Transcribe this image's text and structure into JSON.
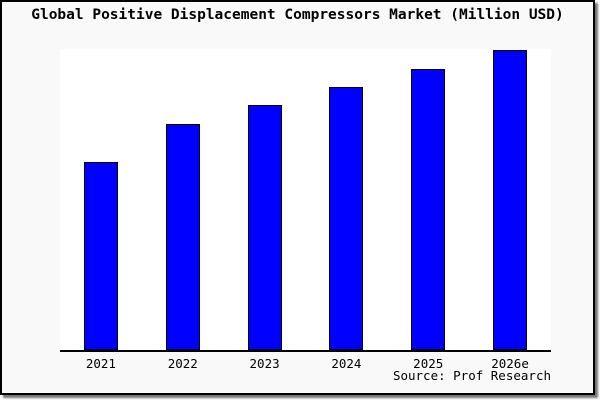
{
  "card": {
    "background": "#f9f9f9",
    "border_color": "#000000"
  },
  "title": "Global Positive Displacement Compressors Market (Million USD)",
  "source_note": "Source: Prof Research",
  "chart_data": {
    "type": "bar",
    "title": "Global Positive Displacement Compressors Market (Million USD)",
    "categories": [
      "2021",
      "2022",
      "2023",
      "2024",
      "2025",
      "2026e"
    ],
    "values": [
      62.7,
      75.3,
      81.7,
      87.7,
      93.7,
      100
    ],
    "values_note": "y-axis is unlabeled; values are relative bar heights with tallest bar (2026e) = 100",
    "xlabel": "",
    "ylabel": "",
    "ylim": [
      0,
      100
    ],
    "grid": false,
    "legend": false,
    "y_axis_visible": false,
    "x_axis_line": true,
    "bar_color": "#0000ff",
    "bar_border_color": "#000000",
    "plot_background": "#ffffff",
    "source": "Source: Prof Research"
  }
}
